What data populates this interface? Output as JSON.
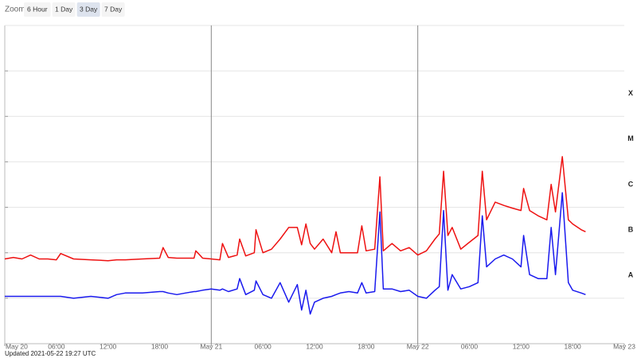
{
  "zoom": {
    "label": "Zoom",
    "buttons": [
      "6 Hour",
      "1 Day",
      "3 Day",
      "7 Day"
    ],
    "selected": 2
  },
  "updated": "Updated 2021-05-22 19:27 UTC",
  "chart_data": {
    "type": "line",
    "log_scale": true,
    "grid": true,
    "x": [
      0,
      1,
      2,
      3,
      4,
      5,
      6,
      6.5,
      8,
      10,
      12,
      13,
      14,
      16,
      18,
      18.4,
      19,
      20,
      21,
      22,
      22.2,
      23,
      24,
      25,
      25.3,
      26,
      27,
      27.3,
      28,
      29,
      29.2,
      30,
      31,
      32,
      33,
      34,
      34.5,
      35,
      35.5,
      36,
      37,
      38,
      38.5,
      39,
      40,
      41,
      41.5,
      42,
      43,
      43.6,
      44,
      45,
      46,
      47,
      48,
      49,
      50,
      50.5,
      51,
      51.5,
      52,
      53,
      54,
      55,
      55.5,
      56,
      57,
      58,
      59,
      60,
      60.3,
      61,
      62,
      63,
      63.5,
      64,
      64.8,
      65.5,
      66,
      67,
      67.5
    ],
    "series": [
      {
        "color": "#ee1111",
        "values": [
          7.3e-08,
          7.9e-08,
          7.3e-08,
          8.9e-08,
          7.3e-08,
          7.3e-08,
          7e-08,
          9.6e-08,
          7.3e-08,
          7e-08,
          6.7e-08,
          7e-08,
          7e-08,
          7.3e-08,
          7.6e-08,
          1.3e-07,
          7.9e-08,
          7.6e-08,
          7.6e-08,
          7.6e-08,
          1.1e-07,
          7.6e-08,
          7.3e-08,
          7e-08,
          1.6e-07,
          7.9e-08,
          8.9e-08,
          2e-07,
          8.5e-08,
          1e-07,
          3.2e-07,
          1e-07,
          1.2e-07,
          2e-07,
          3.6e-07,
          3.6e-07,
          1.5e-07,
          4.3e-07,
          1.6e-07,
          1.2e-07,
          2e-07,
          1e-07,
          2.9e-07,
          1e-07,
          1e-07,
          1e-07,
          3.9e-07,
          1.1e-07,
          1.2e-07,
          4.7e-06,
          1.1e-07,
          1.6e-07,
          1.1e-07,
          1.3e-07,
          8.9e-08,
          1.1e-07,
          2e-07,
          2.6e-07,
          6.2e-06,
          2.4e-07,
          3.6e-07,
          1.2e-07,
          1.7e-07,
          2.4e-07,
          6.2e-06,
          5.3e-07,
          1.3e-06,
          1.1e-06,
          9.6e-07,
          8.5e-07,
          2.6e-06,
          8.5e-07,
          6.5e-07,
          5.3e-07,
          3.2e-06,
          7.9e-07,
          1.3e-05,
          5.3e-07,
          4.3e-07,
          3.2e-07,
          2.9e-07
        ]
      },
      {
        "color": "#1a1aee",
        "values": [
          1.1e-08,
          1.1e-08,
          1.1e-08,
          1.1e-08,
          1.1e-08,
          1.1e-08,
          1.1e-08,
          1.1e-08,
          1e-08,
          1.1e-08,
          1e-08,
          1.2e-08,
          1.3e-08,
          1.3e-08,
          1.4e-08,
          1.4e-08,
          1.3e-08,
          1.2e-08,
          1.3e-08,
          1.4e-08,
          1.4e-08,
          1.5e-08,
          1.6e-08,
          1.5e-08,
          1.6e-08,
          1.4e-08,
          1.6e-08,
          2.7e-08,
          1.2e-08,
          1.5e-08,
          2.4e-08,
          1.2e-08,
          1e-08,
          2.2e-08,
          8.2e-09,
          2e-08,
          5.5e-09,
          1.5e-08,
          4.5e-09,
          8.2e-09,
          1e-08,
          1.1e-08,
          1.2e-08,
          1.3e-08,
          1.4e-08,
          1.3e-08,
          2.2e-08,
          1.3e-08,
          1.4e-08,
          7.9e-07,
          1.6e-08,
          1.6e-08,
          1.4e-08,
          1.5e-08,
          1.1e-08,
          1e-08,
          1.5e-08,
          1.8e-08,
          8.5e-07,
          1.5e-08,
          3.3e-08,
          1.6e-08,
          1.8e-08,
          2.2e-08,
          6.5e-07,
          4.9e-08,
          7.3e-08,
          8.9e-08,
          7.3e-08,
          4.9e-08,
          2.4e-07,
          3.3e-08,
          2.7e-08,
          2.7e-08,
          3.6e-07,
          3.3e-08,
          2.1e-06,
          2.2e-08,
          1.5e-08,
          1.3e-08,
          1.2e-08
        ]
      }
    ],
    "xlim": [
      0,
      72
    ],
    "xticks": [
      {
        "value": 0,
        "label": "May 20"
      },
      {
        "value": 6,
        "label": "06:00"
      },
      {
        "value": 12,
        "label": "12:00"
      },
      {
        "value": 18,
        "label": "18:00"
      },
      {
        "value": 24,
        "label": "May 21"
      },
      {
        "value": 30,
        "label": "06:00"
      },
      {
        "value": 36,
        "label": "12:00"
      },
      {
        "value": 42,
        "label": "18:00"
      },
      {
        "value": 48,
        "label": "May 22"
      },
      {
        "value": 54,
        "label": "06:00"
      },
      {
        "value": 60,
        "label": "12:00"
      },
      {
        "value": 66,
        "label": "18:00"
      },
      {
        "value": 72,
        "label": "May 23"
      }
    ],
    "ylim": [
      1e-09,
      0.01
    ],
    "yticks": [
      1e-09,
      1e-08,
      1e-07,
      1e-06,
      1e-05,
      0.0001,
      0.001,
      0.01
    ],
    "bands": [
      {
        "label": "X",
        "range": [
          0.0001,
          0.001
        ]
      },
      {
        "label": "M",
        "range": [
          1e-05,
          0.0001
        ]
      },
      {
        "label": "C",
        "range": [
          1e-06,
          1e-05
        ]
      },
      {
        "label": "B",
        "range": [
          1e-07,
          1e-06
        ]
      },
      {
        "label": "A",
        "range": [
          1e-08,
          1e-07
        ]
      }
    ]
  }
}
